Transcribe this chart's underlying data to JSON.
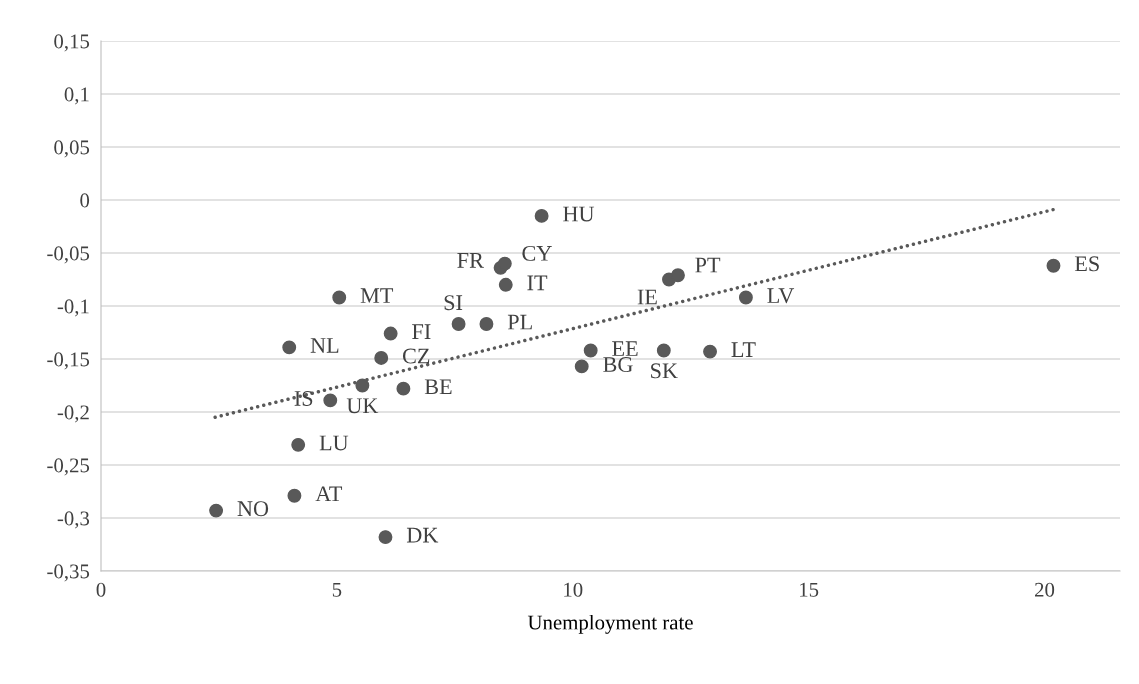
{
  "chart_data": {
    "type": "scatter",
    "xlabel": "Unemployment rate",
    "xlim": [
      0,
      21.6
    ],
    "xticks": [
      0,
      5,
      10,
      15,
      20
    ],
    "ylim": [
      -0.35,
      0.15
    ],
    "yticks": [
      {
        "value": -0.35,
        "label": "-0,35"
      },
      {
        "value": -0.3,
        "label": "-0,3"
      },
      {
        "value": -0.25,
        "label": "-0,25"
      },
      {
        "value": -0.2,
        "label": "-0,2"
      },
      {
        "value": -0.15,
        "label": "-0,15"
      },
      {
        "value": -0.1,
        "label": "-0,1"
      },
      {
        "value": -0.05,
        "label": "-0,05"
      },
      {
        "value": 0,
        "label": "0"
      },
      {
        "value": 0.05,
        "label": "0,05"
      },
      {
        "value": 0.1,
        "label": "0,1"
      },
      {
        "value": 0.15,
        "label": "0,15"
      }
    ],
    "grid": "y",
    "marker": "circle",
    "series": [
      {
        "color": "#595959",
        "x": [
          9.34,
          8.47,
          8.56,
          8.58,
          5.05,
          6.14,
          7.58,
          8.17,
          3.99,
          5.94,
          5.54,
          6.41,
          4.86,
          4.18,
          4.1,
          2.44,
          6.03,
          10.38,
          10.19,
          11.93,
          12.91,
          12.04,
          12.23,
          13.67,
          20.19
        ],
        "values": [
          -0.015,
          -0.064,
          -0.06,
          -0.08,
          -0.092,
          -0.126,
          -0.117,
          -0.117,
          -0.139,
          -0.149,
          -0.175,
          -0.178,
          -0.189,
          -0.231,
          -0.279,
          -0.293,
          -0.318,
          -0.142,
          -0.157,
          -0.142,
          -0.143,
          -0.075,
          -0.071,
          -0.092,
          -0.062
        ]
      },
      {
        "type": "line",
        "color": "#595959",
        "line_style": "dotted",
        "marker": "none",
        "x": [
          2.42,
          20.19
        ],
        "values": [
          -0.205,
          -0.009
        ]
      }
    ],
    "annotations": [
      {
        "text": "HU",
        "x": 9.34,
        "y": -0.015
      },
      {
        "text": "FR",
        "x": 8.47,
        "y": -0.064
      },
      {
        "text": "CY",
        "x": 8.56,
        "y": -0.06
      },
      {
        "text": "IT",
        "x": 8.58,
        "y": -0.08
      },
      {
        "text": "MT",
        "x": 5.05,
        "y": -0.092
      },
      {
        "text": "FI",
        "x": 6.14,
        "y": -0.126
      },
      {
        "text": "SI",
        "x": 7.58,
        "y": -0.117
      },
      {
        "text": "PL",
        "x": 8.17,
        "y": -0.117
      },
      {
        "text": "NL",
        "x": 3.99,
        "y": -0.139
      },
      {
        "text": "CZ",
        "x": 5.94,
        "y": -0.149
      },
      {
        "text": "UK",
        "x": 5.54,
        "y": -0.175
      },
      {
        "text": "BE",
        "x": 6.41,
        "y": -0.178
      },
      {
        "text": "IS",
        "x": 4.86,
        "y": -0.189
      },
      {
        "text": "LU",
        "x": 4.18,
        "y": -0.231
      },
      {
        "text": "AT",
        "x": 4.1,
        "y": -0.279
      },
      {
        "text": "NO",
        "x": 2.44,
        "y": -0.293
      },
      {
        "text": "DK",
        "x": 6.03,
        "y": -0.318
      },
      {
        "text": "EE",
        "x": 10.38,
        "y": -0.142
      },
      {
        "text": "BG",
        "x": 10.19,
        "y": -0.157
      },
      {
        "text": "SK",
        "x": 11.93,
        "y": -0.142
      },
      {
        "text": "LT",
        "x": 12.91,
        "y": -0.143
      },
      {
        "text": "IE",
        "x": 12.04,
        "y": -0.075
      },
      {
        "text": "PT",
        "x": 12.23,
        "y": -0.071
      },
      {
        "text": "LV",
        "x": 13.67,
        "y": -0.092
      },
      {
        "text": "ES",
        "x": 20.19,
        "y": -0.062
      }
    ]
  }
}
